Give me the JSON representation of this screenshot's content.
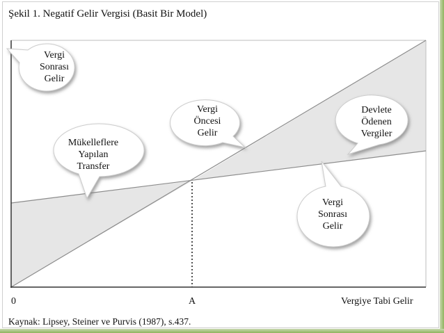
{
  "title": "Şekil 1. Negatif Gelir Vergisi (Basit Bir Model)",
  "source": "Kaynak: Lipsey, Steiner ve Purvis (1987), s.437.",
  "axis": {
    "origin_label": "0",
    "point_label": "A",
    "x_label": "Vergiye Tabi Gelir"
  },
  "callouts": {
    "post_tax_top": [
      "Vergi",
      "Sonrası",
      "Gelir"
    ],
    "pre_tax": [
      "Vergi",
      "Öncesi",
      "Gelir"
    ],
    "taxes_paid": [
      "Devlete",
      "Ödenen",
      "Vergiler"
    ],
    "transfer": [
      "Mükelleflere",
      "Yapılan",
      "Transfer"
    ],
    "post_tax_right": [
      "Vergi",
      "Sonrası",
      "Gelir"
    ]
  },
  "colors": {
    "shade": "#e6e6e6",
    "line": "#8c8c8c",
    "axis": "#333333",
    "bubble_shadow": "#9a9a9a"
  }
}
